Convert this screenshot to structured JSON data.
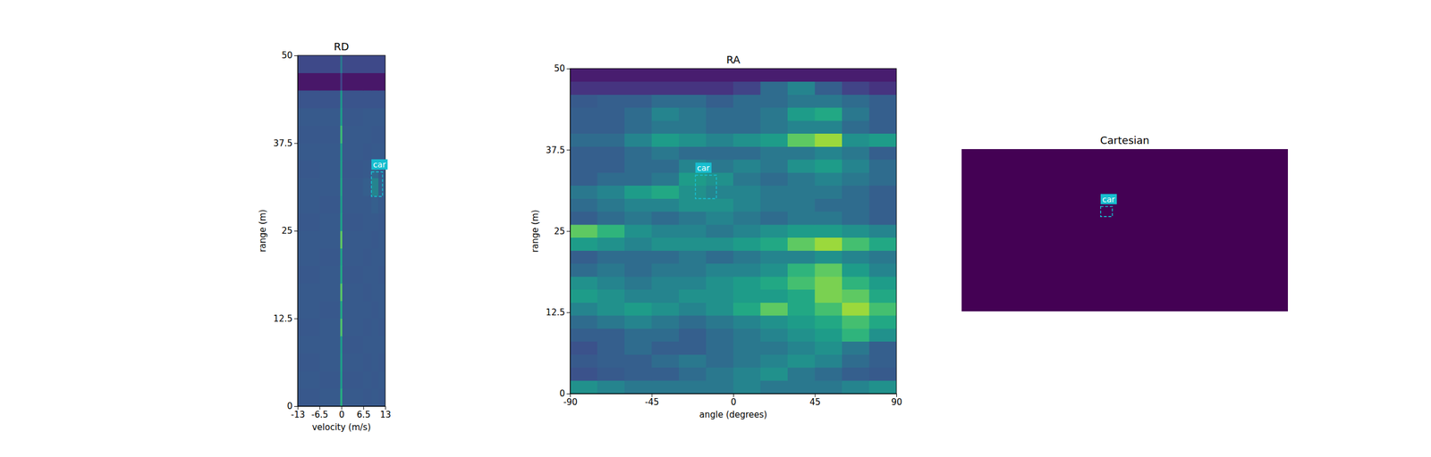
{
  "chart_data": [
    {
      "type": "heatmap",
      "title": "RD",
      "xlabel": "velocity (m/s)",
      "ylabel": "range (m)",
      "xlim": [
        -13,
        13
      ],
      "ylim": [
        0,
        50
      ],
      "xticks": [
        -13,
        -6.5,
        0,
        6.5,
        13
      ],
      "yticks": [
        0,
        12.5,
        25,
        37.5,
        50
      ],
      "zlim": [
        0,
        1
      ],
      "x_edges": [
        -13,
        -6.5,
        -0.3,
        0.3,
        6.5,
        9,
        11,
        13
      ],
      "y_edges": [
        0,
        2.5,
        5,
        7.5,
        10,
        12.5,
        15,
        17.5,
        20,
        22.5,
        25,
        27.5,
        30,
        32.5,
        35,
        37.5,
        40,
        42.5,
        45,
        47.5,
        50
      ],
      "z": [
        [
          0.27,
          0.28,
          0.62,
          0.28,
          0.27,
          0.28,
          0.27
        ],
        [
          0.28,
          0.27,
          0.55,
          0.27,
          0.28,
          0.27,
          0.28
        ],
        [
          0.27,
          0.28,
          0.56,
          0.28,
          0.27,
          0.28,
          0.27
        ],
        [
          0.28,
          0.28,
          0.55,
          0.27,
          0.28,
          0.28,
          0.28
        ],
        [
          0.27,
          0.28,
          0.72,
          0.28,
          0.27,
          0.28,
          0.27
        ],
        [
          0.28,
          0.27,
          0.6,
          0.28,
          0.28,
          0.27,
          0.28
        ],
        [
          0.28,
          0.28,
          0.74,
          0.28,
          0.27,
          0.28,
          0.28
        ],
        [
          0.27,
          0.28,
          0.6,
          0.27,
          0.28,
          0.28,
          0.27
        ],
        [
          0.28,
          0.27,
          0.58,
          0.28,
          0.27,
          0.28,
          0.28
        ],
        [
          0.28,
          0.28,
          0.75,
          0.28,
          0.28,
          0.27,
          0.28
        ],
        [
          0.27,
          0.28,
          0.57,
          0.27,
          0.28,
          0.28,
          0.27
        ],
        [
          0.28,
          0.27,
          0.55,
          0.28,
          0.28,
          0.3,
          0.28
        ],
        [
          0.28,
          0.28,
          0.58,
          0.28,
          0.3,
          0.45,
          0.3
        ],
        [
          0.27,
          0.28,
          0.56,
          0.27,
          0.28,
          0.34,
          0.28
        ],
        [
          0.28,
          0.28,
          0.55,
          0.28,
          0.27,
          0.28,
          0.28
        ],
        [
          0.27,
          0.27,
          0.68,
          0.28,
          0.28,
          0.27,
          0.27
        ],
        [
          0.28,
          0.28,
          0.55,
          0.27,
          0.28,
          0.28,
          0.28
        ],
        [
          0.26,
          0.26,
          0.52,
          0.26,
          0.26,
          0.26,
          0.26
        ],
        [
          0.06,
          0.06,
          0.2,
          0.06,
          0.06,
          0.06,
          0.06
        ],
        [
          0.22,
          0.22,
          0.4,
          0.22,
          0.22,
          0.22,
          0.22
        ]
      ],
      "annotations": [
        {
          "text": "car",
          "x0": 8.9,
          "x1": 12.2,
          "y0": 29.9,
          "y1": 33.4
        }
      ]
    },
    {
      "type": "heatmap",
      "title": "RA",
      "xlabel": "angle (degrees)",
      "ylabel": "range (m)",
      "xlim": [
        -90,
        90
      ],
      "ylim": [
        0,
        50
      ],
      "xticks": [
        -90,
        -45,
        0,
        45,
        90
      ],
      "yticks": [
        0,
        12.5,
        25,
        37.5,
        50
      ],
      "zlim": [
        0,
        1
      ],
      "x_edges": [
        -90,
        -75,
        -60,
        -45,
        -30,
        -15,
        0,
        15,
        30,
        45,
        60,
        75,
        90
      ],
      "y_edges": [
        0,
        2,
        4,
        6,
        8,
        10,
        12,
        14,
        16,
        18,
        20,
        22,
        24,
        26,
        28,
        30,
        32,
        34,
        36,
        38,
        40,
        42,
        44,
        46,
        48,
        50
      ],
      "z": [
        [
          0.5,
          0.45,
          0.4,
          0.4,
          0.4,
          0.4,
          0.45,
          0.4,
          0.4,
          0.4,
          0.45,
          0.5
        ],
        [
          0.25,
          0.28,
          0.3,
          0.3,
          0.35,
          0.4,
          0.45,
          0.5,
          0.4,
          0.35,
          0.3,
          0.28
        ],
        [
          0.28,
          0.3,
          0.3,
          0.35,
          0.4,
          0.35,
          0.4,
          0.45,
          0.5,
          0.45,
          0.35,
          0.3
        ],
        [
          0.25,
          0.3,
          0.35,
          0.3,
          0.3,
          0.35,
          0.4,
          0.4,
          0.45,
          0.5,
          0.4,
          0.3
        ],
        [
          0.3,
          0.3,
          0.35,
          0.35,
          0.3,
          0.35,
          0.4,
          0.45,
          0.5,
          0.55,
          0.65,
          0.5
        ],
        [
          0.35,
          0.4,
          0.45,
          0.4,
          0.35,
          0.4,
          0.45,
          0.5,
          0.55,
          0.6,
          0.7,
          0.6
        ],
        [
          0.45,
          0.5,
          0.55,
          0.5,
          0.45,
          0.5,
          0.6,
          0.75,
          0.6,
          0.7,
          0.85,
          0.7
        ],
        [
          0.55,
          0.5,
          0.45,
          0.45,
          0.5,
          0.5,
          0.55,
          0.55,
          0.6,
          0.8,
          0.75,
          0.6
        ],
        [
          0.5,
          0.45,
          0.4,
          0.45,
          0.45,
          0.5,
          0.55,
          0.6,
          0.7,
          0.8,
          0.65,
          0.55
        ],
        [
          0.35,
          0.4,
          0.35,
          0.4,
          0.4,
          0.45,
          0.45,
          0.5,
          0.65,
          0.75,
          0.55,
          0.45
        ],
        [
          0.3,
          0.35,
          0.35,
          0.35,
          0.4,
          0.35,
          0.4,
          0.45,
          0.45,
          0.5,
          0.45,
          0.4
        ],
        [
          0.55,
          0.5,
          0.45,
          0.5,
          0.5,
          0.5,
          0.55,
          0.6,
          0.75,
          0.85,
          0.7,
          0.6
        ],
        [
          0.75,
          0.65,
          0.5,
          0.45,
          0.45,
          0.4,
          0.45,
          0.5,
          0.55,
          0.55,
          0.5,
          0.45
        ],
        [
          0.3,
          0.35,
          0.4,
          0.35,
          0.4,
          0.45,
          0.4,
          0.35,
          0.4,
          0.4,
          0.35,
          0.3
        ],
        [
          0.35,
          0.4,
          0.45,
          0.45,
          0.5,
          0.5,
          0.45,
          0.4,
          0.4,
          0.35,
          0.35,
          0.3
        ],
        [
          0.4,
          0.45,
          0.55,
          0.6,
          0.5,
          0.45,
          0.45,
          0.4,
          0.4,
          0.4,
          0.35,
          0.3
        ],
        [
          0.3,
          0.35,
          0.35,
          0.4,
          0.55,
          0.5,
          0.4,
          0.35,
          0.4,
          0.45,
          0.4,
          0.35
        ],
        [
          0.3,
          0.3,
          0.35,
          0.35,
          0.45,
          0.4,
          0.45,
          0.4,
          0.5,
          0.55,
          0.45,
          0.35
        ],
        [
          0.3,
          0.3,
          0.35,
          0.4,
          0.35,
          0.35,
          0.35,
          0.4,
          0.4,
          0.45,
          0.4,
          0.3
        ],
        [
          0.35,
          0.35,
          0.45,
          0.55,
          0.5,
          0.45,
          0.5,
          0.55,
          0.75,
          0.85,
          0.5,
          0.55
        ],
        [
          0.3,
          0.3,
          0.35,
          0.4,
          0.4,
          0.35,
          0.35,
          0.4,
          0.45,
          0.45,
          0.35,
          0.3
        ],
        [
          0.3,
          0.3,
          0.35,
          0.45,
          0.4,
          0.35,
          0.35,
          0.4,
          0.55,
          0.6,
          0.4,
          0.3
        ],
        [
          0.28,
          0.3,
          0.3,
          0.35,
          0.35,
          0.3,
          0.35,
          0.35,
          0.4,
          0.4,
          0.35,
          0.3
        ],
        [
          0.15,
          0.15,
          0.15,
          0.15,
          0.15,
          0.15,
          0.2,
          0.35,
          0.45,
          0.3,
          0.2,
          0.15
        ],
        [
          0.08,
          0.08,
          0.08,
          0.08,
          0.08,
          0.08,
          0.08,
          0.08,
          0.08,
          0.08,
          0.08,
          0.08
        ]
      ],
      "annotations": [
        {
          "text": "car",
          "x0": -20.9,
          "x1": -9.3,
          "y0": 30.0,
          "y1": 33.6
        }
      ]
    },
    {
      "type": "heatmap",
      "title": "Cartesian",
      "tick_labels": false,
      "xlim": [
        -50,
        50
      ],
      "ylim": [
        0,
        50
      ],
      "zlim": [
        0,
        1
      ],
      "x_edges": [
        -50,
        50
      ],
      "y_edges": [
        0,
        50
      ],
      "z": [
        [
          0
        ]
      ],
      "annotations": [
        {
          "text": "car",
          "x0": -7.4,
          "x1": -3.8,
          "y0": 29.2,
          "y1": 32.3
        }
      ]
    }
  ]
}
